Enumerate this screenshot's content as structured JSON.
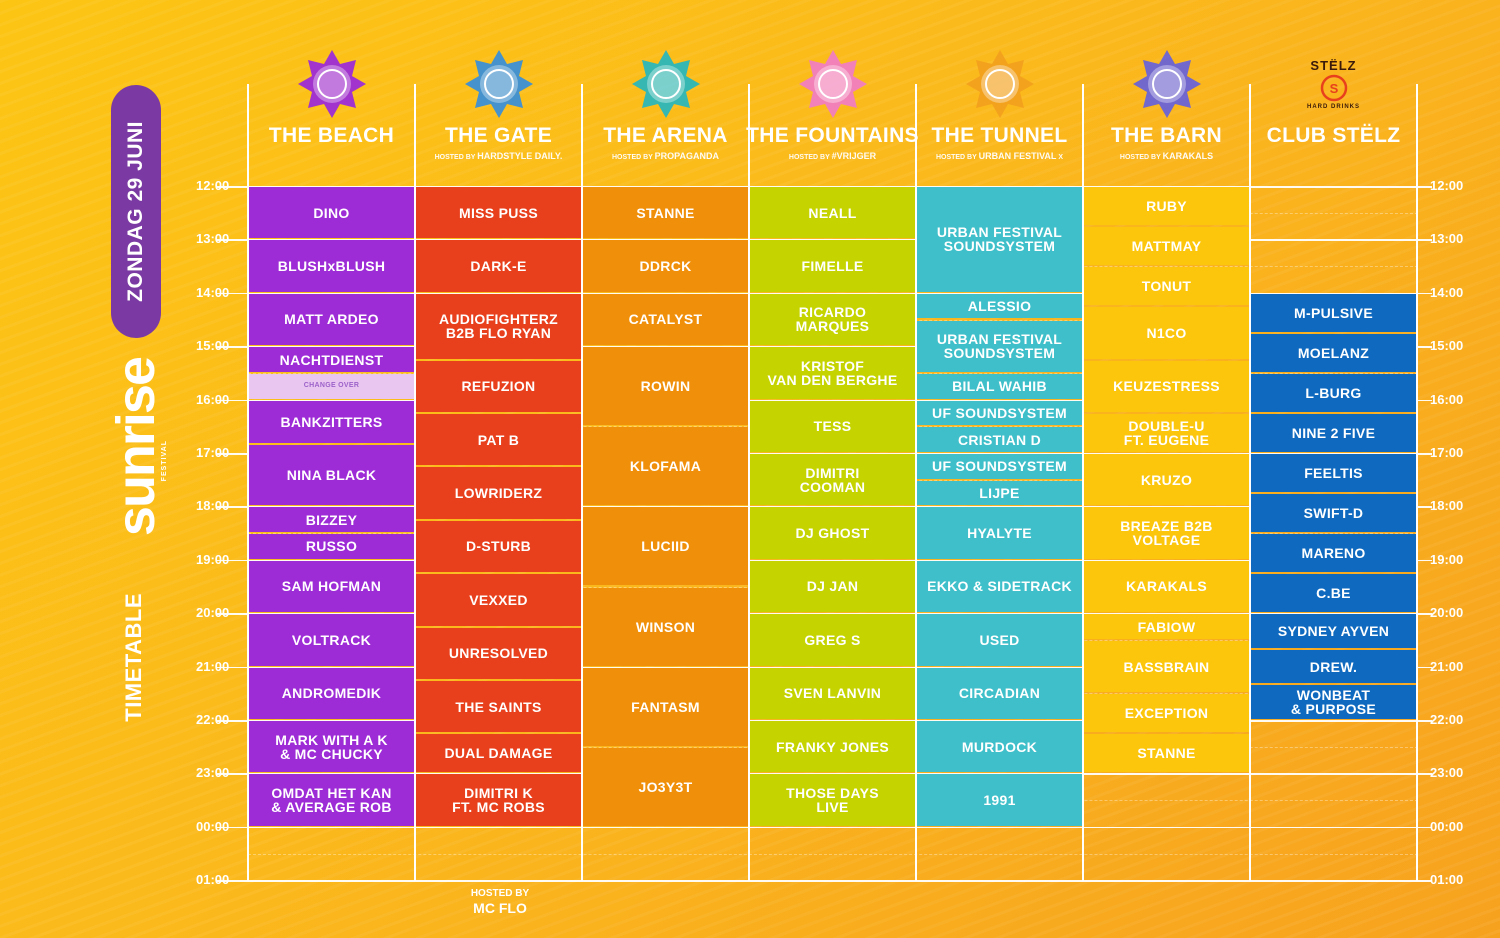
{
  "sidebar": {
    "date": "ZONDAG 29 JUNI",
    "logo_word": "sunrise",
    "logo_sub": "FESTIVAL",
    "timetable_label": "TIMETABLE"
  },
  "colors": {
    "beach": "#9d2bd6",
    "gate": "#e8401c",
    "arena": "#f08f0a",
    "fountains": "#c5d400",
    "tunnel": "#3fbfc9",
    "barn": "#fcc60c",
    "stelz": "#0f6abf"
  },
  "times": [
    "12:00",
    "13:00",
    "14:00",
    "15:00",
    "16:00",
    "17:00",
    "18:00",
    "19:00",
    "20:00",
    "21:00",
    "22:00",
    "23:00",
    "00:00",
    "01:00"
  ],
  "stages": [
    {
      "name": "THE BEACH",
      "host": "",
      "icon": "sun-over-waves-icon",
      "color": "#9d2bd6"
    },
    {
      "name": "THE GATE",
      "host": "HOSTED BY",
      "host_brand": "HARDSTYLE DAILY.",
      "icon": "crossed-keys-icon",
      "color": "#3b8fd6"
    },
    {
      "name": "THE ARENA",
      "host": "HOSTED BY",
      "host_brand": "PROPAGANDA",
      "icon": "arena-building-icon",
      "color": "#2bb6b9"
    },
    {
      "name": "THE FOUNTAINS",
      "host": "HOSTED BY",
      "host_brand": "#VRIJGER",
      "icon": "fountain-icon",
      "color": "#f07dc0"
    },
    {
      "name": "THE TUNNEL",
      "host": "HOSTED BY",
      "host_brand": "URBAN FESTIVAL",
      "host_brand2": "X",
      "icon": "tunnel-arch-icon",
      "color": "#f2a01e"
    },
    {
      "name": "THE BARN",
      "host": "HOSTED BY",
      "host_brand": "KARAKALS",
      "icon": "barn-icon",
      "color": "#6a63d6"
    },
    {
      "name": "CLUB STËLZ",
      "host": "",
      "host_brand": "STËLZ",
      "host_brand_sub": "HARD DRINKS",
      "icon": "stelz-logo-icon",
      "color": "#e8401c"
    }
  ],
  "columns": [
    {
      "stage": "THE BEACH",
      "slots": [
        {
          "name": "DINO",
          "start": 12.0,
          "end": 13.0
        },
        {
          "name": "BLUSHxBLUSH",
          "start": 13.0,
          "end": 14.0
        },
        {
          "name": "MATT ARDEO",
          "start": 14.0,
          "end": 15.0
        },
        {
          "name": "NACHTDIENST",
          "start": 15.0,
          "end": 15.5
        },
        {
          "name": "CHANGE OVER",
          "start": 15.5,
          "end": 16.0,
          "kind": "change"
        },
        {
          "name": "BANKZITTERS",
          "start": 16.0,
          "end": 16.83
        },
        {
          "name": "NINA BLACK",
          "start": 16.83,
          "end": 18.0
        },
        {
          "name": "BIZZEY",
          "start": 18.0,
          "end": 18.5
        },
        {
          "name": "RUSSO",
          "start": 18.5,
          "end": 19.0
        },
        {
          "name": "SAM HOFMAN",
          "start": 19.0,
          "end": 20.0
        },
        {
          "name": "VOLTRACK",
          "start": 20.0,
          "end": 21.0
        },
        {
          "name": "ANDROMEDIK",
          "start": 21.0,
          "end": 22.0
        },
        {
          "name": "MARK WITH A K\n& MC CHUCKY",
          "start": 22.0,
          "end": 23.0
        },
        {
          "name": "OMDAT HET KAN\n& AVERAGE ROB",
          "start": 23.0,
          "end": 24.0
        }
      ]
    },
    {
      "stage": "THE GATE",
      "slots": [
        {
          "name": "MISS PUSS",
          "start": 12.0,
          "end": 13.0
        },
        {
          "name": "DARK-E",
          "start": 13.0,
          "end": 14.0
        },
        {
          "name": "AUDIOFIGHTERZ\nB2B FLO RYAN",
          "start": 14.0,
          "end": 15.25
        },
        {
          "name": "REFUZION",
          "start": 15.25,
          "end": 16.25
        },
        {
          "name": "PAT B",
          "start": 16.25,
          "end": 17.25
        },
        {
          "name": "LOWRIDERZ",
          "start": 17.25,
          "end": 18.25
        },
        {
          "name": "D-STURB",
          "start": 18.25,
          "end": 19.25
        },
        {
          "name": "VEXXED",
          "start": 19.25,
          "end": 20.25
        },
        {
          "name": "UNRESOLVED",
          "start": 20.25,
          "end": 21.25
        },
        {
          "name": "THE SAINTS",
          "start": 21.25,
          "end": 22.25
        },
        {
          "name": "DUAL DAMAGE",
          "start": 22.25,
          "end": 23.0
        },
        {
          "name": "DIMITRI K\nFT. MC ROBS",
          "start": 23.0,
          "end": 24.0
        }
      ]
    },
    {
      "stage": "THE ARENA",
      "slots": [
        {
          "name": "STANNE",
          "start": 12.0,
          "end": 13.0
        },
        {
          "name": "DDRCK",
          "start": 13.0,
          "end": 14.0
        },
        {
          "name": "CATALYST",
          "start": 14.0,
          "end": 15.0
        },
        {
          "name": "ROWIN",
          "start": 15.0,
          "end": 16.5
        },
        {
          "name": "KLOFAMA",
          "start": 16.5,
          "end": 18.0
        },
        {
          "name": "LUCIID",
          "start": 18.0,
          "end": 19.5
        },
        {
          "name": "WINSON",
          "start": 19.5,
          "end": 21.0
        },
        {
          "name": "FANTASM",
          "start": 21.0,
          "end": 22.5
        },
        {
          "name": "JO3Y3T",
          "start": 22.5,
          "end": 24.0
        }
      ]
    },
    {
      "stage": "THE FOUNTAINS",
      "slots": [
        {
          "name": "NEALL",
          "start": 12.0,
          "end": 13.0
        },
        {
          "name": "FIMELLE",
          "start": 13.0,
          "end": 14.0
        },
        {
          "name": "RICARDO\nMARQUES",
          "start": 14.0,
          "end": 15.0
        },
        {
          "name": "KRISTOF\nVAN DEN BERGHE",
          "start": 15.0,
          "end": 16.0
        },
        {
          "name": "TESS",
          "start": 16.0,
          "end": 17.0
        },
        {
          "name": "DIMITRI\nCOOMAN",
          "start": 17.0,
          "end": 18.0
        },
        {
          "name": "DJ GHOST",
          "start": 18.0,
          "end": 19.0
        },
        {
          "name": "DJ JAN",
          "start": 19.0,
          "end": 20.0
        },
        {
          "name": "GREG S",
          "start": 20.0,
          "end": 21.0
        },
        {
          "name": "SVEN LANVIN",
          "start": 21.0,
          "end": 22.0
        },
        {
          "name": "FRANKY JONES",
          "start": 22.0,
          "end": 23.0
        },
        {
          "name": "THOSE DAYS\nLIVE",
          "start": 23.0,
          "end": 24.0
        }
      ]
    },
    {
      "stage": "THE TUNNEL",
      "slots": [
        {
          "name": "URBAN FESTIVAL\nSOUNDSYSTEM",
          "start": 12.0,
          "end": 14.0
        },
        {
          "name": "ALESSIO",
          "start": 14.0,
          "end": 14.5
        },
        {
          "name": "URBAN FESTIVAL\nSOUNDSYSTEM",
          "start": 14.5,
          "end": 15.5
        },
        {
          "name": "BILAL WAHIB",
          "start": 15.5,
          "end": 16.0
        },
        {
          "name": "UF SOUNDSYSTEM",
          "start": 16.0,
          "end": 16.5
        },
        {
          "name": "CRISTIAN D",
          "start": 16.5,
          "end": 17.0
        },
        {
          "name": "UF SOUNDSYSTEM",
          "start": 17.0,
          "end": 17.5
        },
        {
          "name": "LIJPE",
          "start": 17.5,
          "end": 18.0
        },
        {
          "name": "HYALYTE",
          "start": 18.0,
          "end": 19.0
        },
        {
          "name": "EKKO & SIDETRACK",
          "start": 19.0,
          "end": 20.0
        },
        {
          "name": "USED",
          "start": 20.0,
          "end": 21.0
        },
        {
          "name": "CIRCADIAN",
          "start": 21.0,
          "end": 22.0
        },
        {
          "name": "MURDOCK",
          "start": 22.0,
          "end": 23.0
        },
        {
          "name": "1991",
          "start": 23.0,
          "end": 24.0
        }
      ]
    },
    {
      "stage": "THE BARN",
      "slots": [
        {
          "name": "RUBY",
          "start": 12.0,
          "end": 12.75
        },
        {
          "name": "MATTMAY",
          "start": 12.75,
          "end": 13.5
        },
        {
          "name": "TONUT",
          "start": 13.5,
          "end": 14.25
        },
        {
          "name": "N1CO",
          "start": 14.25,
          "end": 15.25
        },
        {
          "name": "KEUZESTRESS",
          "start": 15.25,
          "end": 16.25
        },
        {
          "name": "DOUBLE-U\nFT. EUGENE",
          "start": 16.25,
          "end": 17.0
        },
        {
          "name": "KRUZO",
          "start": 17.0,
          "end": 18.0
        },
        {
          "name": "BREAZE B2B VOLTAGE",
          "start": 18.0,
          "end": 19.0
        },
        {
          "name": "KARAKALS",
          "start": 19.0,
          "end": 20.0
        },
        {
          "name": "FABIOW",
          "start": 20.0,
          "end": 20.5
        },
        {
          "name": "BASSBRAIN",
          "start": 20.5,
          "end": 21.5
        },
        {
          "name": "EXCEPTION",
          "start": 21.5,
          "end": 22.25
        },
        {
          "name": "STANNE",
          "start": 22.25,
          "end": 23.0
        }
      ]
    },
    {
      "stage": "CLUB STËLZ",
      "slots": [
        {
          "name": "M-PULSIVE",
          "start": 14.0,
          "end": 14.75
        },
        {
          "name": "MOELANZ",
          "start": 14.75,
          "end": 15.5
        },
        {
          "name": "L-BURG",
          "start": 15.5,
          "end": 16.25
        },
        {
          "name": "NINE 2 FIVE",
          "start": 16.25,
          "end": 17.0
        },
        {
          "name": "FEELTIS",
          "start": 17.0,
          "end": 17.75
        },
        {
          "name": "SWIFT-D",
          "start": 17.75,
          "end": 18.5
        },
        {
          "name": "MARENO",
          "start": 18.5,
          "end": 19.25
        },
        {
          "name": "C.BE",
          "start": 19.25,
          "end": 20.0
        },
        {
          "name": "SYDNEY AYVEN",
          "start": 20.0,
          "end": 20.67
        },
        {
          "name": "DREW.",
          "start": 20.67,
          "end": 21.33
        },
        {
          "name": "WONBEAT\n& PURPOSE",
          "start": 21.33,
          "end": 22.0
        }
      ]
    }
  ],
  "footer": {
    "hosted_by": "HOSTED BY",
    "host_name": "MC FLO"
  }
}
